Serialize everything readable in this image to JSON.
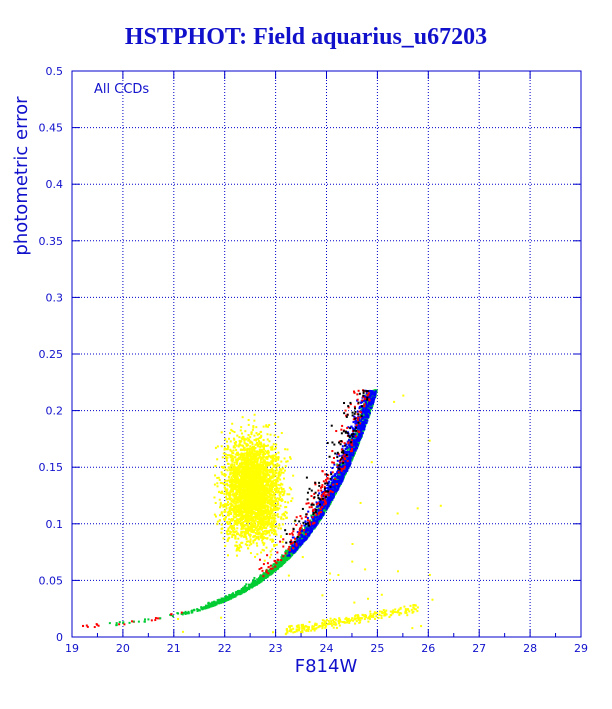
{
  "chart_data": {
    "type": "scatter",
    "title": "HSTPHOT: Field aquarius_u67203",
    "xlabel": "F814W",
    "ylabel": "photometric error",
    "annotation": "All CCDs",
    "xlim": [
      19,
      29
    ],
    "ylim": [
      0,
      0.5
    ],
    "xticks": [
      "19",
      "20",
      "21",
      "22",
      "23",
      "24",
      "25",
      "26",
      "27",
      "28",
      "29"
    ],
    "yticks": [
      "0",
      "0.05",
      "0.1",
      "0.15",
      "0.2",
      "0.25",
      "0.3",
      "0.35",
      "0.4",
      "0.45",
      "0.5"
    ],
    "grid": true,
    "colors": {
      "axes": "#0000cc",
      "grid": "#0000cc",
      "text": "#1111cc",
      "yellow": "#ffff00",
      "green": "#00cc33",
      "blue": "#0000ff",
      "red": "#ff0000",
      "black": "#000000"
    },
    "series": [
      {
        "color": "yellow",
        "description_points": [
          [
            22.5,
            0.1
          ],
          [
            23,
            0.15
          ],
          [
            22,
            0.2
          ],
          [
            23.5,
            0.12
          ],
          [
            21.5,
            0.09
          ],
          [
            24,
            0.015
          ],
          [
            24.5,
            0.02
          ],
          [
            25,
            0.035
          ]
        ]
      },
      {
        "color": "green",
        "description_points": [
          [
            21,
            0.015
          ],
          [
            22,
            0.025
          ],
          [
            23,
            0.045
          ],
          [
            24,
            0.08
          ],
          [
            24.5,
            0.12
          ],
          [
            25,
            0.21
          ]
        ]
      },
      {
        "color": "blue",
        "description_points": [
          [
            24,
            0.08
          ],
          [
            24.3,
            0.1
          ],
          [
            24.6,
            0.15
          ],
          [
            24.8,
            0.19
          ]
        ]
      },
      {
        "color": "red",
        "description_points": [
          [
            19.5,
            0.005
          ],
          [
            20.5,
            0.01
          ],
          [
            23,
            0.05
          ],
          [
            24,
            0.12
          ],
          [
            24.5,
            0.18
          ]
        ]
      },
      {
        "color": "black",
        "description_points": [
          [
            23.5,
            0.08
          ],
          [
            24.2,
            0.14
          ],
          [
            24.6,
            0.21
          ]
        ]
      }
    ]
  }
}
